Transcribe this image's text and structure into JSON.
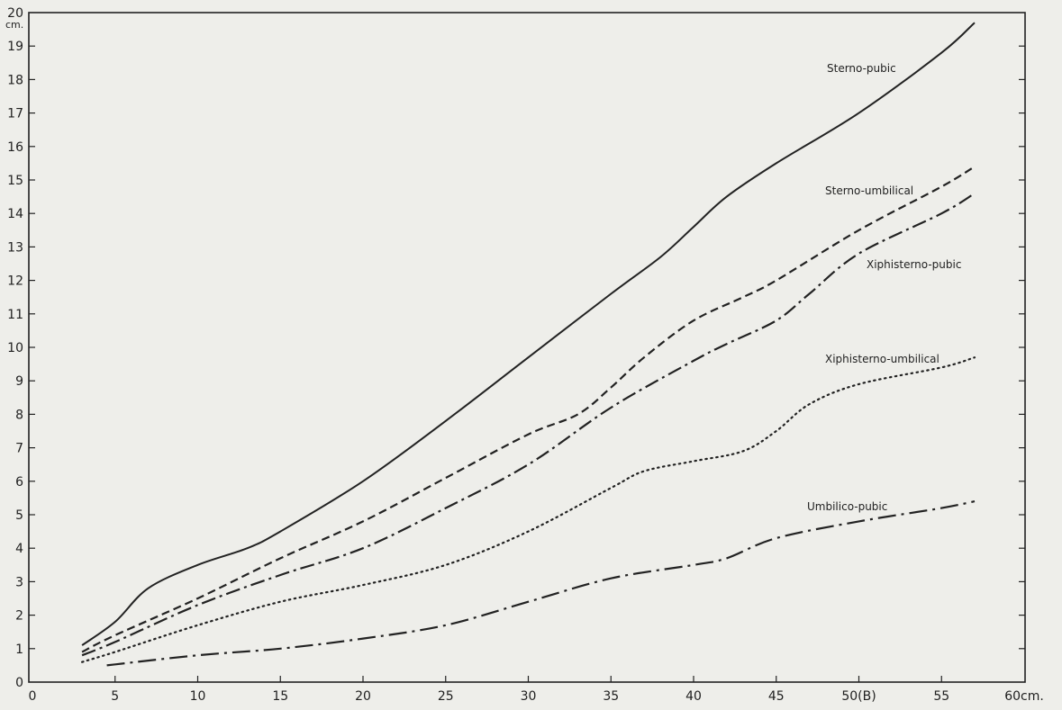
{
  "chart_data": {
    "type": "line",
    "title": "",
    "xlabel": "",
    "ylabel": "",
    "x_unit": "cm.",
    "y_unit": "cm.",
    "xlim": [
      0,
      60
    ],
    "ylim": [
      0,
      20
    ],
    "x_ticks": [
      0,
      5,
      10,
      15,
      20,
      25,
      30,
      35,
      40,
      45,
      50,
      55,
      60
    ],
    "x_tick_labels": [
      "0",
      "5",
      "10",
      "15",
      "20",
      "25",
      "30",
      "35",
      "40",
      "45",
      "50(B)",
      "55",
      "60cm."
    ],
    "y_ticks": [
      0,
      1,
      2,
      3,
      4,
      5,
      6,
      7,
      8,
      9,
      10,
      11,
      12,
      13,
      14,
      15,
      16,
      17,
      18,
      19,
      20
    ],
    "y_tick_labels": [
      "0",
      "1",
      "2",
      "3",
      "4",
      "5",
      "6",
      "7",
      "8",
      "9",
      "10",
      "11",
      "12",
      "13",
      "14",
      "15",
      "16",
      "17",
      "18",
      "19",
      "20"
    ],
    "grid": false,
    "line_color": "#222222",
    "series": [
      {
        "name": "Sterno-pubic",
        "style": "solid",
        "x": [
          3,
          5,
          7,
          10,
          13,
          15,
          20,
          25,
          30,
          35,
          38,
          40,
          42,
          45,
          50,
          55,
          57
        ],
        "y": [
          1.1,
          1.8,
          2.8,
          3.5,
          4.0,
          4.5,
          6.0,
          7.8,
          9.7,
          11.6,
          12.7,
          13.6,
          14.5,
          15.5,
          17.0,
          18.8,
          19.7
        ]
      },
      {
        "name": "Sterno-umbilical",
        "style": "dashed",
        "x": [
          3,
          5,
          10,
          15,
          20,
          25,
          30,
          33,
          35,
          37,
          40,
          43,
          45,
          50,
          55,
          57
        ],
        "y": [
          0.9,
          1.4,
          2.5,
          3.7,
          4.8,
          6.1,
          7.4,
          8.0,
          8.8,
          9.7,
          10.8,
          11.5,
          12.0,
          13.5,
          14.8,
          15.4
        ]
      },
      {
        "name": "Xiphisterno-pubic",
        "style": "dash-dot",
        "x": [
          3,
          5,
          10,
          15,
          20,
          25,
          30,
          35,
          40,
          42,
          45,
          47,
          50,
          55,
          57
        ],
        "y": [
          0.8,
          1.2,
          2.3,
          3.2,
          4.0,
          5.2,
          6.5,
          8.2,
          9.6,
          10.1,
          10.8,
          11.6,
          12.8,
          14.0,
          14.6
        ]
      },
      {
        "name": "Xiphisterno-umbilical",
        "style": "dotted",
        "x": [
          3,
          5,
          10,
          15,
          20,
          25,
          30,
          35,
          37,
          40,
          43,
          45,
          47,
          50,
          55,
          57
        ],
        "y": [
          0.6,
          0.9,
          1.7,
          2.4,
          2.9,
          3.5,
          4.5,
          5.8,
          6.3,
          6.6,
          6.9,
          7.5,
          8.3,
          8.9,
          9.4,
          9.7
        ]
      },
      {
        "name": "Umbilico-pubic",
        "style": "long-dash-dot",
        "x": [
          4.5,
          10,
          15,
          20,
          25,
          30,
          35,
          40,
          42,
          45,
          50,
          55,
          57
        ],
        "y": [
          0.5,
          0.8,
          1.0,
          1.3,
          1.7,
          2.4,
          3.1,
          3.5,
          3.7,
          4.3,
          4.8,
          5.2,
          5.4
        ]
      }
    ]
  }
}
